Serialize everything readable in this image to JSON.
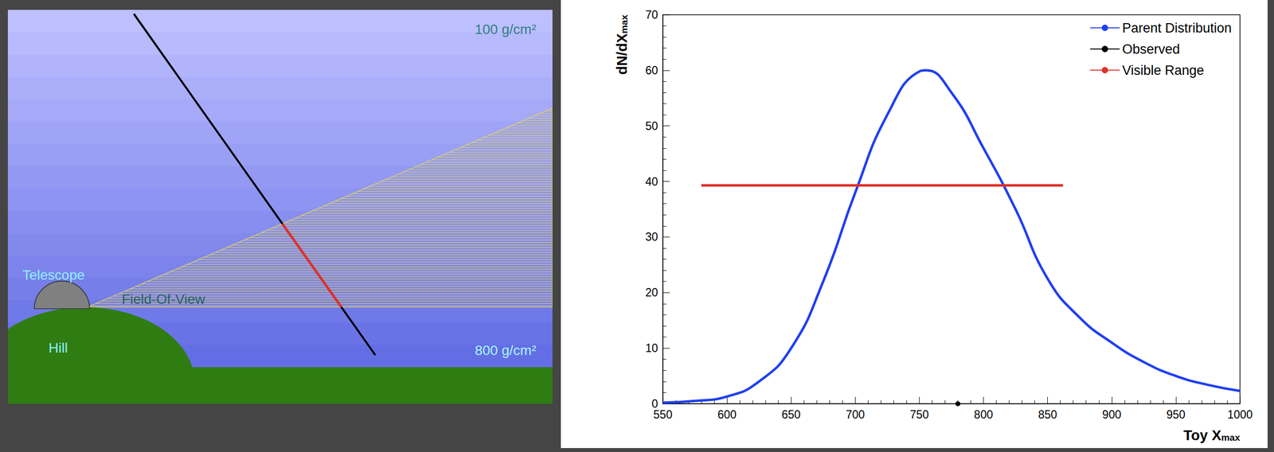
{
  "diagram": {
    "labels": {
      "top_depth": "100 g/cm²",
      "bottom_depth": "800 g/cm²",
      "telescope": "Telescope",
      "field_of_view": "Field-Of-View",
      "hill": "Hill"
    }
  },
  "chart_data": {
    "type": "line",
    "xlabel": {
      "text": "Toy X",
      "subscript": "max"
    },
    "ylabel": {
      "text": "dN/dX",
      "subscript": "max"
    },
    "xlim": [
      550,
      1000
    ],
    "xticks": [
      550,
      600,
      650,
      700,
      750,
      800,
      850,
      900,
      950,
      1000
    ],
    "ylim": [
      0,
      70
    ],
    "yticks": [
      0,
      10,
      20,
      30,
      40,
      50,
      60,
      70
    ],
    "legend": "upper right",
    "series": [
      {
        "name": "Parent Distribution",
        "color": "#1f3ff0",
        "marker": "none",
        "line_style": "solid",
        "x": [
          550,
          575,
          600,
          625,
          650,
          675,
          700,
          725,
          750,
          755,
          775,
          800,
          825,
          850,
          875,
          900,
          925,
          950,
          975,
          1000
        ],
        "values": [
          0.2,
          0.5,
          1.3,
          4,
          10,
          22,
          38,
          52,
          59.8,
          60,
          56,
          46,
          35,
          22.5,
          15.5,
          11,
          7.5,
          5,
          3.4,
          2.3
        ]
      },
      {
        "name": "Observed",
        "color": "#000000",
        "marker": "circle",
        "line_style": "solid",
        "x": [
          780
        ],
        "values": [
          0
        ]
      },
      {
        "name": "Visible Range",
        "color": "#e0302a",
        "marker": "none",
        "line_style": "solid",
        "x": [
          580,
          862
        ],
        "values": [
          39.3,
          39.3
        ]
      }
    ]
  }
}
